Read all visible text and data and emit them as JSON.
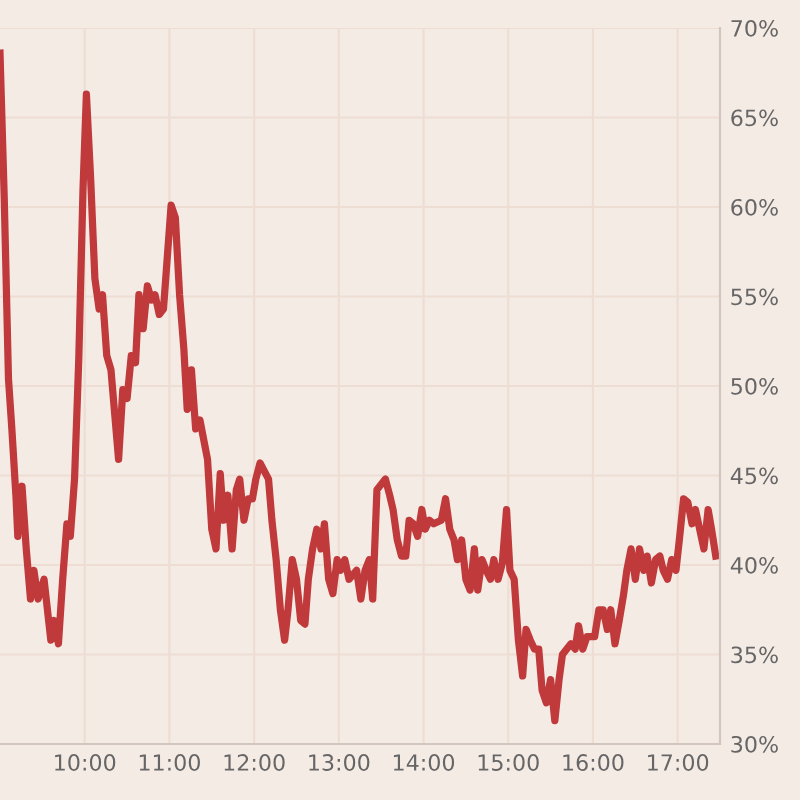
{
  "chart_data": {
    "type": "line",
    "x": [
      9.0,
      9.05,
      9.1,
      9.14,
      9.19,
      9.21,
      9.26,
      9.31,
      9.36,
      9.4,
      9.45,
      9.52,
      9.6,
      9.64,
      9.69,
      9.74,
      9.79,
      9.83,
      9.88,
      9.93,
      9.98,
      10.02,
      10.07,
      10.12,
      10.17,
      10.21,
      10.26,
      10.31,
      10.36,
      10.4,
      10.45,
      10.5,
      10.55,
      10.6,
      10.64,
      10.69,
      10.74,
      10.79,
      10.83,
      10.88,
      10.93,
      11.02,
      11.07,
      11.12,
      11.17,
      11.21,
      11.26,
      11.31,
      11.36,
      11.45,
      11.5,
      11.55,
      11.6,
      11.64,
      11.69,
      11.74,
      11.79,
      11.83,
      11.88,
      11.93,
      11.98,
      12.02,
      12.07,
      12.17,
      12.21,
      12.26,
      12.31,
      12.36,
      12.4,
      12.45,
      12.5,
      12.55,
      12.6,
      12.64,
      12.69,
      12.74,
      12.79,
      12.83,
      12.88,
      12.93,
      12.98,
      13.02,
      13.07,
      13.12,
      13.21,
      13.26,
      13.31,
      13.36,
      13.4,
      13.45,
      13.55,
      13.6,
      13.64,
      13.69,
      13.74,
      13.79,
      13.83,
      13.88,
      13.93,
      13.98,
      14.02,
      14.07,
      14.12,
      14.21,
      14.26,
      14.31,
      14.36,
      14.4,
      14.45,
      14.5,
      14.55,
      14.6,
      14.64,
      14.69,
      14.74,
      14.79,
      14.83,
      14.88,
      14.93,
      14.98,
      15.02,
      15.07,
      15.12,
      15.17,
      15.21,
      15.26,
      15.31,
      15.36,
      15.4,
      15.45,
      15.5,
      15.55,
      15.6,
      15.64,
      15.74,
      15.79,
      15.83,
      15.88,
      15.93,
      16.02,
      16.07,
      16.12,
      16.17,
      16.21,
      16.26,
      16.31,
      16.36,
      16.4,
      16.45,
      16.5,
      16.55,
      16.6,
      16.64,
      16.69,
      16.74,
      16.79,
      16.83,
      16.88,
      16.93,
      16.98,
      17.02,
      17.07,
      17.12,
      17.17,
      17.21,
      17.26,
      17.31,
      17.36,
      17.4,
      17.45
    ],
    "series": [
      {
        "color": "#c0393b",
        "values": [
          68.6,
          60.5,
          50.4,
          47.6,
          43.7,
          41.6,
          44.4,
          40.9,
          38.1,
          39.7,
          38.1,
          39.2,
          35.8,
          36.9,
          35.6,
          39.2,
          42.3,
          41.6,
          44.8,
          51.5,
          61.0,
          66.3,
          61.6,
          56.0,
          54.3,
          55.1,
          51.7,
          50.9,
          48.1,
          45.9,
          49.8,
          49.3,
          51.7,
          51.3,
          55.1,
          53.2,
          55.6,
          54.8,
          55.1,
          54.0,
          54.3,
          60.1,
          59.4,
          55.1,
          52.1,
          48.7,
          50.9,
          47.6,
          48.1,
          45.9,
          42.0,
          40.9,
          45.1,
          42.5,
          43.9,
          40.9,
          44.2,
          44.8,
          42.5,
          43.7,
          43.7,
          44.8,
          45.7,
          44.8,
          42.5,
          40.3,
          37.5,
          35.8,
          37.5,
          40.3,
          39.2,
          36.9,
          36.7,
          39.2,
          40.9,
          42.0,
          40.9,
          42.3,
          39.2,
          38.4,
          40.3,
          39.7,
          40.3,
          39.2,
          39.7,
          38.1,
          39.7,
          40.3,
          38.1,
          44.2,
          44.8,
          43.9,
          43.1,
          41.4,
          40.5,
          40.5,
          42.5,
          42.3,
          41.6,
          43.1,
          42.0,
          42.5,
          42.3,
          42.5,
          43.7,
          42.0,
          41.4,
          40.3,
          41.4,
          39.2,
          38.6,
          40.9,
          38.6,
          40.3,
          39.7,
          39.2,
          40.3,
          39.2,
          40.1,
          43.1,
          39.7,
          39.2,
          35.8,
          33.8,
          36.4,
          35.8,
          35.3,
          35.3,
          33.0,
          32.3,
          33.6,
          31.3,
          33.6,
          35.0,
          35.6,
          35.3,
          36.6,
          35.3,
          36.0,
          36.0,
          37.5,
          37.5,
          36.4,
          37.5,
          35.6,
          36.9,
          38.3,
          39.7,
          40.9,
          39.2,
          40.9,
          39.7,
          40.5,
          39.0,
          40.3,
          40.5,
          39.7,
          39.2,
          40.3,
          39.7,
          41.4,
          43.7,
          43.5,
          42.3,
          43.1,
          42.0,
          40.9,
          43.1,
          42.0,
          40.5
        ]
      }
    ],
    "xlim": [
      9.0,
      17.5
    ],
    "ylim": [
      30,
      70
    ],
    "xticks": [
      {
        "value": 10,
        "label": "10:00"
      },
      {
        "value": 11,
        "label": "11:00"
      },
      {
        "value": 12,
        "label": "12:00"
      },
      {
        "value": 13,
        "label": "13:00"
      },
      {
        "value": 14,
        "label": "14:00"
      },
      {
        "value": 15,
        "label": "15:00"
      },
      {
        "value": 16,
        "label": "16:00"
      },
      {
        "value": 17,
        "label": "17:00"
      }
    ],
    "yticks": [
      {
        "value": 30,
        "label": "30%"
      },
      {
        "value": 35,
        "label": "35%"
      },
      {
        "value": 40,
        "label": "40%"
      },
      {
        "value": 45,
        "label": "45%"
      },
      {
        "value": 50,
        "label": "50%"
      },
      {
        "value": 55,
        "label": "55%"
      },
      {
        "value": 60,
        "label": "60%"
      },
      {
        "value": 65,
        "label": "65%"
      },
      {
        "value": 70,
        "label": "70%"
      }
    ],
    "grid": true,
    "line_style": "solid",
    "marker": "none",
    "legend": false
  }
}
